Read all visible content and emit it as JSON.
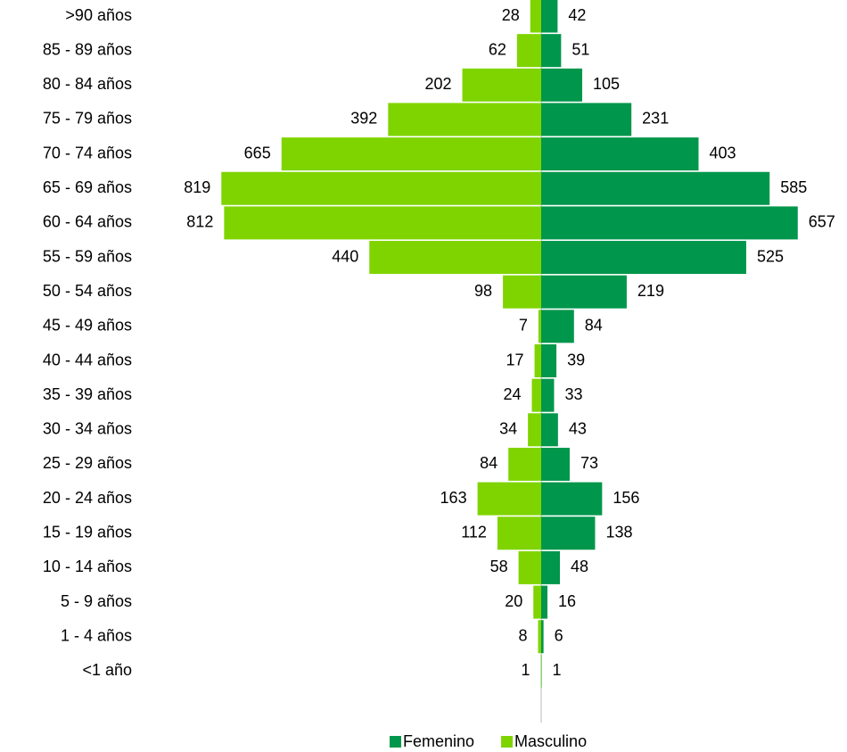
{
  "chart_data": {
    "type": "pyramid",
    "categories": [
      ">90 años",
      "85 - 89 años",
      "80 - 84 años",
      "75 - 79 años",
      "70 - 74 años",
      "65 - 69 años",
      "60 - 64 años",
      "55 - 59 años",
      "50 - 54 años",
      "45 - 49 años",
      "40 - 44 años",
      "35 - 39 años",
      "30 - 34 años",
      "25 - 29 años",
      "20 - 24 años",
      "15 - 19 años",
      "10 - 14 años",
      "5 - 9 años",
      "1 - 4 años",
      "<1 año"
    ],
    "series": [
      {
        "name": "Femenino",
        "color": "#00964b",
        "side": "right",
        "values": [
          42,
          51,
          105,
          231,
          403,
          585,
          657,
          525,
          219,
          84,
          39,
          33,
          43,
          73,
          156,
          138,
          48,
          16,
          6,
          1
        ]
      },
      {
        "name": "Masculino",
        "color": "#7fd400",
        "side": "left",
        "values": [
          28,
          62,
          202,
          392,
          665,
          819,
          812,
          440,
          98,
          7,
          17,
          24,
          34,
          84,
          163,
          112,
          58,
          20,
          8,
          1
        ]
      }
    ],
    "legend": "bottom"
  }
}
